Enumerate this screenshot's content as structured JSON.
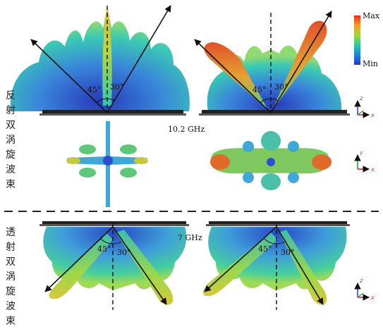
{
  "labels": {
    "reflection": "反\n射\n双\n涡\n旋\n波\n束",
    "transmission": "透\n射\n双\n涡\n旋\n波\n束"
  },
  "frequencies": {
    "top": "10.2 GHz",
    "bottom": "7 GHz"
  },
  "angles": {
    "a45": "45°",
    "a30": "30°"
  },
  "colorbar": {
    "max": "Max",
    "min": "Min",
    "colors": [
      "#e8291d",
      "#f5a020",
      "#9dd83a",
      "#22c6a6",
      "#1b7fe0",
      "#2a32d0"
    ]
  },
  "axes": {
    "x": "x",
    "y": "y",
    "z": "z"
  }
}
